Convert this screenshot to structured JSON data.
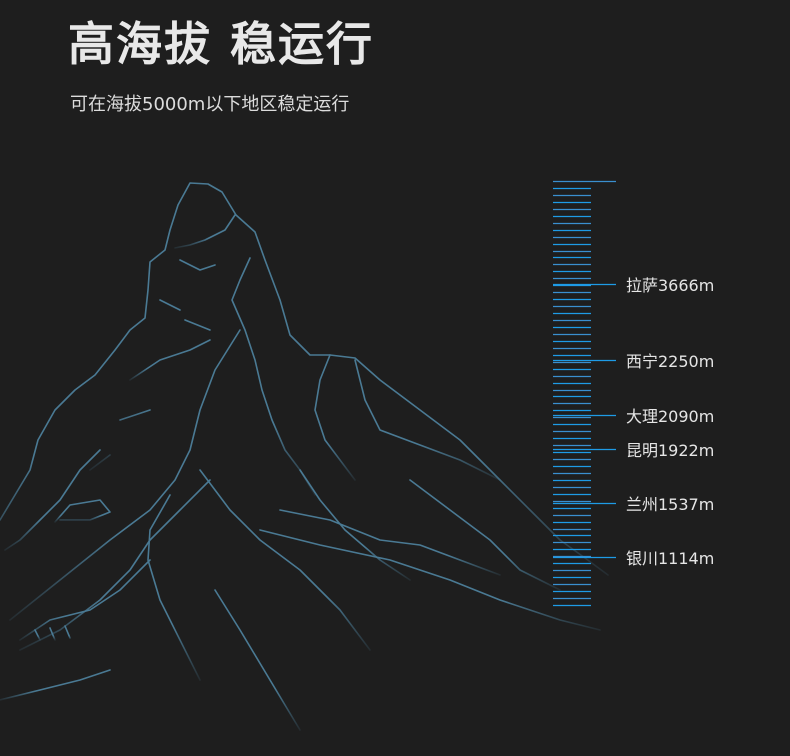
{
  "header": {
    "title": "高海拔 稳运行",
    "subtitle": "可在海拔5000m以下地区稳定运行"
  },
  "altitude_scale": {
    "color": "#1e9be6",
    "markers": [
      {
        "label": "拉萨3666m"
      },
      {
        "label": "西宁2250m"
      },
      {
        "label": "大理2090m"
      },
      {
        "label": "昆明1922m"
      },
      {
        "label": "兰州1537m"
      },
      {
        "label": "银川1114m"
      }
    ]
  },
  "illustration": {
    "name": "mountain-line-art",
    "stroke_color": "#4a7a94"
  }
}
